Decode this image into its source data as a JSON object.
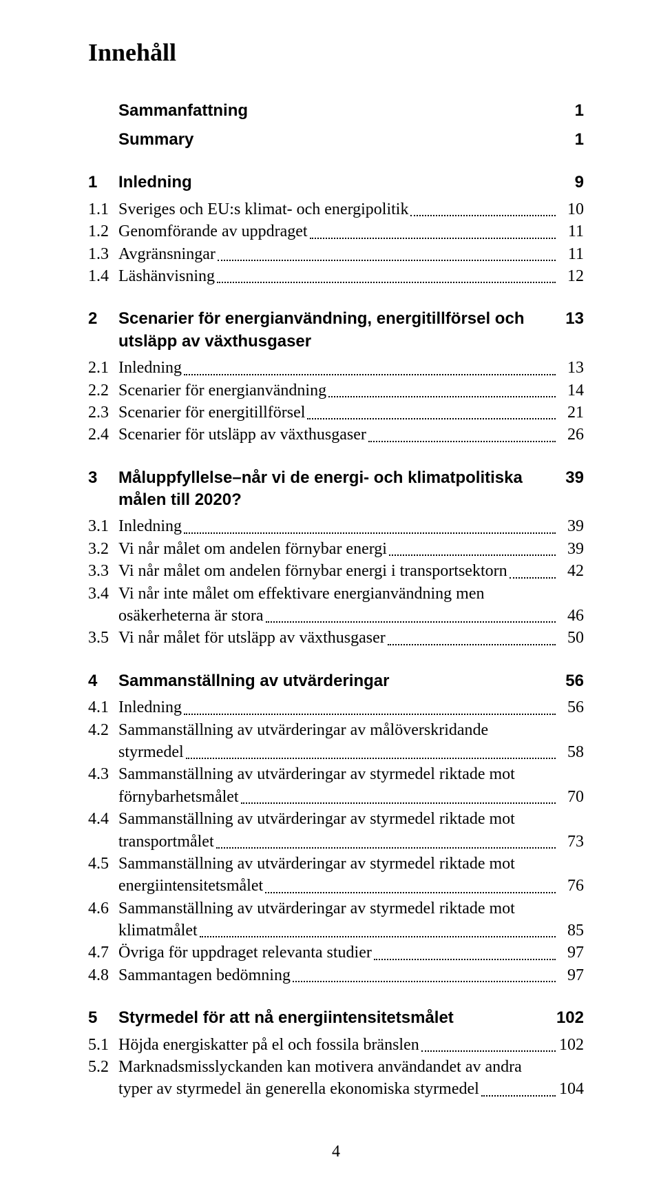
{
  "title": "Innehåll",
  "page_number": "4",
  "sections": [
    {
      "num": "",
      "title": "Sammanfattning",
      "page": "1",
      "entries": []
    },
    {
      "num": "",
      "title": "Summary",
      "page": "1",
      "entries": []
    },
    {
      "num": "1",
      "title": "Inledning",
      "page": "9",
      "entries": [
        {
          "num": "1.1",
          "label": "Sveriges och EU:s klimat- och energipolitik",
          "page": "10"
        },
        {
          "num": "1.2",
          "label": "Genomförande av uppdraget",
          "page": "11"
        },
        {
          "num": "1.3",
          "label": "Avgränsningar",
          "page": "11"
        },
        {
          "num": "1.4",
          "label": "Läshänvisning",
          "page": "12"
        }
      ]
    },
    {
      "num": "2",
      "title": "Scenarier för energianvändning, energitillförsel och utsläpp av växthusgaser",
      "page": "13",
      "entries": [
        {
          "num": "2.1",
          "label": "Inledning",
          "page": "13"
        },
        {
          "num": "2.2",
          "label": "Scenarier för energianvändning",
          "page": "14"
        },
        {
          "num": "2.3",
          "label": "Scenarier för energitillförsel",
          "page": "21"
        },
        {
          "num": "2.4",
          "label": "Scenarier för utsläpp av växthusgaser",
          "page": "26"
        }
      ]
    },
    {
      "num": "3",
      "title": "Måluppfyllelse–når vi de energi- och klimatpolitiska målen till 2020?",
      "page": "39",
      "entries": [
        {
          "num": "3.1",
          "label": "Inledning",
          "page": "39"
        },
        {
          "num": "3.2",
          "label": "Vi når målet om andelen förnybar energi",
          "page": "39"
        },
        {
          "num": "3.3",
          "label": "Vi når målet om andelen förnybar energi i transportsektorn",
          "page": "42"
        },
        {
          "num": "3.4",
          "label": "Vi når inte målet om effektivare energianvändning men",
          "label2": "osäkerheterna är stora",
          "page": "46",
          "multi": true
        },
        {
          "num": "3.5",
          "label": "Vi når målet för utsläpp av växthusgaser",
          "page": "50"
        }
      ]
    },
    {
      "num": "4",
      "title": "Sammanställning av utvärderingar",
      "page": "56",
      "entries": [
        {
          "num": "4.1",
          "label": "Inledning",
          "page": "56"
        },
        {
          "num": "4.2",
          "label": "Sammanställning av utvärderingar av målöverskridande",
          "label2": "styrmedel",
          "page": "58",
          "multi": true
        },
        {
          "num": "4.3",
          "label": "Sammanställning av utvärderingar av styrmedel riktade mot",
          "label2": "förnybarhetsmålet",
          "page": "70",
          "multi": true
        },
        {
          "num": "4.4",
          "label": "Sammanställning av utvärderingar av styrmedel riktade mot",
          "label2": "transportmålet",
          "page": "73",
          "multi": true
        },
        {
          "num": "4.5",
          "label": "Sammanställning av utvärderingar av styrmedel riktade mot",
          "label2": "energiintensitetsmålet",
          "page": "76",
          "multi": true
        },
        {
          "num": "4.6",
          "label": "Sammanställning av utvärderingar av styrmedel riktade mot",
          "label2": "klimatmålet",
          "page": "85",
          "multi": true
        },
        {
          "num": "4.7",
          "label": "Övriga för uppdraget relevanta studier",
          "page": "97"
        },
        {
          "num": "4.8",
          "label": "Sammantagen bedömning",
          "page": "97"
        }
      ]
    },
    {
      "num": "5",
      "title": "Styrmedel för att nå energiintensitetsmålet",
      "page": "102",
      "entries": [
        {
          "num": "5.1",
          "label": "Höjda energiskatter på el och fossila bränslen",
          "page": "102"
        },
        {
          "num": "5.2",
          "label": "Marknadsmisslyckanden kan motivera användandet av andra",
          "label2": "typer av styrmedel än generella ekonomiska styrmedel",
          "page": "104",
          "multi": true
        }
      ]
    }
  ],
  "colors": {
    "text": "#000000",
    "background": "#ffffff",
    "dots": "#000000"
  },
  "typography": {
    "body_family": "Times New Roman",
    "heading_family": "Arial",
    "body_size_pt": 12,
    "h1_size_pt": 18,
    "sec_head_size_pt": 12
  }
}
